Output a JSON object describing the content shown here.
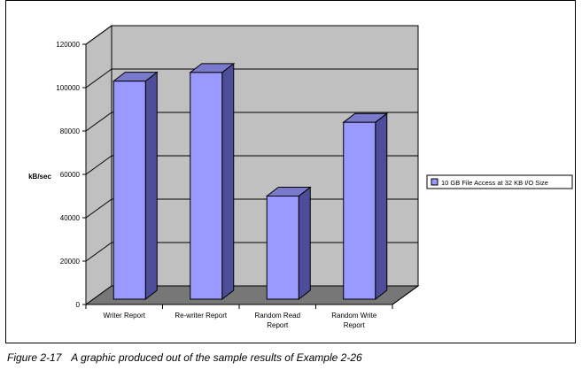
{
  "chart_data": {
    "type": "bar",
    "ylabel": "kB/sec",
    "ylim": [
      0,
      120000
    ],
    "ytick_step": 20000,
    "yticks": [
      "0",
      "20000",
      "40000",
      "60000",
      "80000",
      "100000",
      "120000"
    ],
    "categories": [
      "Writer Report",
      "Re-writer Report",
      "Random Read Report",
      "Random Write Report"
    ],
    "category_lines": [
      [
        "Writer Report"
      ],
      [
        "Re-writer Report"
      ],
      [
        "Random Read",
        "Report"
      ],
      [
        "Random Write",
        "Report"
      ]
    ],
    "series": [
      {
        "name": "10 GB File Access at 32 KB I/O Size",
        "values": [
          103000,
          107000,
          50000,
          84000
        ]
      }
    ],
    "grid": true,
    "legend_position": "right",
    "style": "3d-column",
    "colors": {
      "bar_front": "#9999ff",
      "bar_side": "#4d4d99",
      "bar_top": "#7a7acc",
      "back_wall": "#c0c0c0",
      "floor": "#777777"
    }
  },
  "caption": {
    "number": "Figure 2-17",
    "text": "A graphic produced out of the sample results of Example 2-26"
  }
}
